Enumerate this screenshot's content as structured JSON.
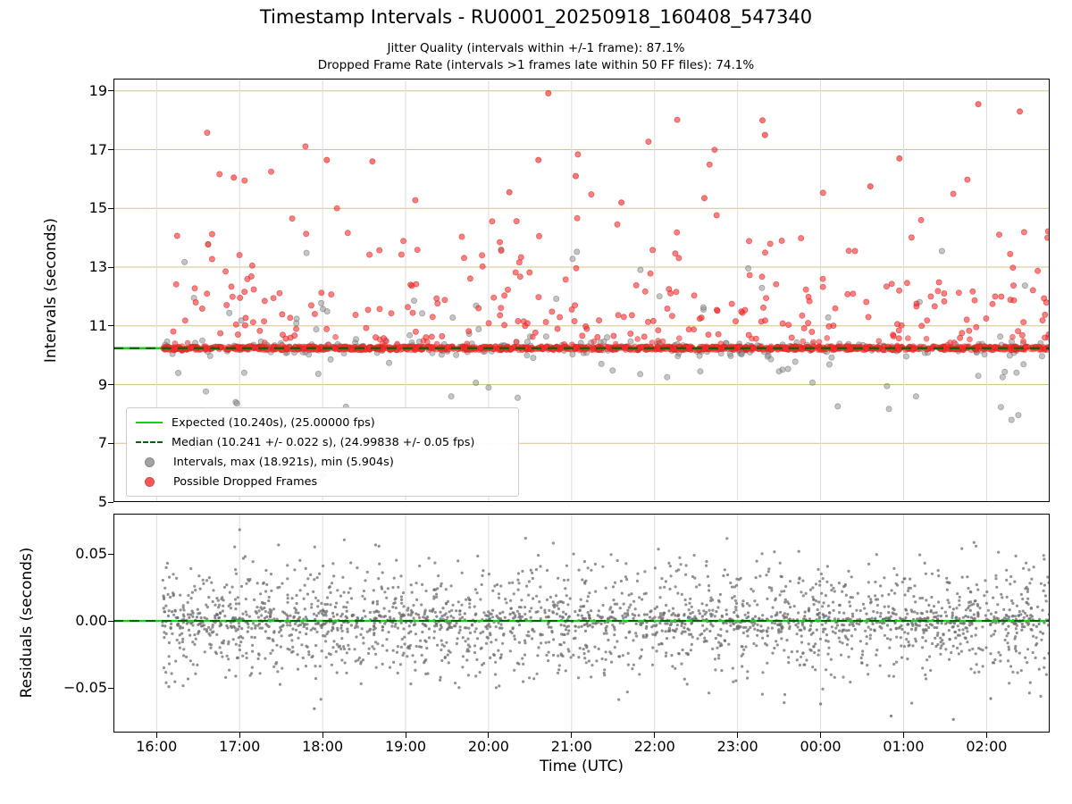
{
  "seed": 20250918,
  "colors": {
    "expected_line": "#17cf17",
    "median_line": "#006400",
    "interval_fill": "#8c8c8c",
    "interval_edge": "#6b6b6b",
    "dropped_fill": "#ff2d2d",
    "dropped_edge": "#c81e1e",
    "residual_fill": "#6e6e6e",
    "grid_horizontal": "#d5c18a",
    "grid_vertical": "#dcdcdc",
    "axis_spine": "#000000"
  },
  "chart_data": [
    {
      "type": "scatter",
      "title": "Timestamp Intervals - RU0001_20250918_160408_547340",
      "subtitle1": "Jitter Quality (intervals within +/-1 frame): 87.1%",
      "subtitle2": "Dropped Frame Rate (intervals >1 frames late within 50 FF files): 74.1%",
      "ylabel": "Intervals (seconds)",
      "ylim": [
        5,
        19.42
      ],
      "yticks": [
        {
          "v": 19,
          "label": "19"
        },
        {
          "v": 17,
          "label": "17"
        },
        {
          "v": 15,
          "label": "15"
        },
        {
          "v": 13,
          "label": "13"
        },
        {
          "v": 11,
          "label": "11"
        },
        {
          "v": 9,
          "label": "9"
        },
        {
          "v": 7,
          "label": "7"
        },
        {
          "v": 5,
          "label": "5"
        }
      ],
      "xlim_hours": [
        15.48,
        26.76
      ],
      "xticks": [
        {
          "hour": 16,
          "label": "16:00"
        },
        {
          "hour": 17,
          "label": "17:00"
        },
        {
          "hour": 18,
          "label": "18:00"
        },
        {
          "hour": 19,
          "label": "19:00"
        },
        {
          "hour": 20,
          "label": "20:00"
        },
        {
          "hour": 21,
          "label": "21:00"
        },
        {
          "hour": 22,
          "label": "22:00"
        },
        {
          "hour": 23,
          "label": "23:00"
        },
        {
          "hour": 24,
          "label": "00:00"
        },
        {
          "hour": 25,
          "label": "01:00"
        },
        {
          "hour": 26,
          "label": "02:00"
        }
      ],
      "data_x_range_hours": [
        16.07,
        26.76
      ],
      "expected_interval_s": 10.24,
      "median_interval_s": 10.241,
      "stats": {
        "jitter_quality_pct": 87.1,
        "dropped_frame_rate_pct": 74.1,
        "expected_fps": 25.0,
        "median_fps": 24.99838,
        "median_fps_err": 0.05,
        "median_err_s": 0.022,
        "max_interval_s": 18.921,
        "min_interval_s": 5.904
      },
      "legend": {
        "items": [
          {
            "label": "Expected (10.240s), (25.00000 fps)",
            "swatch": "solid-line"
          },
          {
            "label": "Median (10.241 +/- 0.022 s), (24.99838 +/- 0.05 fps)",
            "swatch": "dashed-line"
          },
          {
            "label": "Intervals, max (18.921s), min (5.904s)",
            "swatch": "gray-dot"
          },
          {
            "label": "Possible Dropped Frames",
            "swatch": "red-dot"
          }
        ]
      },
      "point_style": {
        "radius": 3.1
      },
      "baseline_band": {
        "red_count": 1300,
        "gray_count": 230,
        "center_s": 10.24,
        "red_halfwidth_s": 0.065,
        "gray_sigma_s": 0.12
      },
      "gray_scatter": {
        "count": 80,
        "fixed_points": [
          [
            26.3,
            7.8
          ],
          [
            25.15,
            8.6
          ],
          [
            20.0,
            8.9
          ],
          [
            19.55,
            8.6
          ],
          [
            20.35,
            8.55
          ],
          [
            22.55,
            9.45
          ],
          [
            16.62,
            13.78
          ],
          [
            20.15,
            13.6
          ],
          [
            18.0,
            5.904
          ],
          [
            16.45,
            11.95
          ],
          [
            23.5,
            9.45
          ],
          [
            25.9,
            9.3
          ],
          [
            24.8,
            8.95
          ]
        ]
      },
      "red_outliers": {
        "count": 260,
        "y_start_s": 10.55,
        "decay_s": 1.55,
        "y_cap_s": 18.95,
        "near_band_count": 45,
        "notable_points": [
          [
            16.93,
            16.05
          ],
          [
            18.05,
            16.65
          ],
          [
            18.6,
            16.6
          ],
          [
            20.25,
            15.55
          ],
          [
            20.6,
            16.65
          ],
          [
            20.72,
            18.92
          ],
          [
            21.05,
            16.1
          ],
          [
            22.6,
            15.35
          ],
          [
            23.3,
            18.0
          ],
          [
            23.33,
            17.5
          ],
          [
            24.6,
            15.75
          ],
          [
            24.95,
            16.7
          ],
          [
            25.9,
            18.55
          ],
          [
            26.4,
            18.3
          ],
          [
            21.6,
            15.2
          ]
        ]
      }
    },
    {
      "type": "scatter",
      "ylabel": "Residuals (seconds)",
      "xlabel": "Time (UTC)",
      "ylim": [
        -0.0833,
        0.08
      ],
      "yticks": [
        {
          "v": 0.05,
          "label": "0.05"
        },
        {
          "v": 0,
          "label": "0.00"
        },
        {
          "v": -0.05,
          "label": "−0.05"
        }
      ],
      "zero_line_s": 0,
      "points": {
        "count": 1900,
        "sigma_s": 0.022,
        "core_count": 600,
        "core_sigma_s": 0.004,
        "extreme_points": [
          [
            24.85,
            -0.071
          ],
          [
            25.6,
            -0.0735
          ],
          [
            24.0,
            -0.062
          ],
          [
            26.05,
            -0.058
          ],
          [
            17.9,
            -0.0655
          ]
        ]
      },
      "point_style": {
        "radius": 1.6
      }
    }
  ]
}
